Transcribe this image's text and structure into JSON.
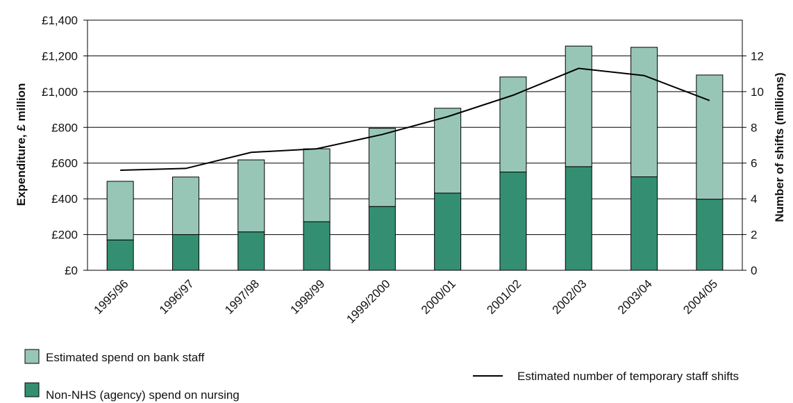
{
  "chart_data": {
    "type": "bar",
    "stacked": true,
    "categories": [
      "1995/96",
      "1996/97",
      "1997/98",
      "1998/99",
      "1999/2000",
      "2000/01",
      "2001/02",
      "2002/03",
      "2003/04",
      "2004/05"
    ],
    "series": [
      {
        "name": "Non-NHS (agency) spend on nursing",
        "kind": "bar",
        "axis": "left",
        "color": "#348f72",
        "values": [
          170,
          200,
          215,
          272,
          357,
          432,
          550,
          580,
          523,
          398
        ]
      },
      {
        "name": "Estimated spend on bank staff",
        "kind": "bar",
        "axis": "left",
        "color": "#97c6b7",
        "values": [
          328,
          322,
          403,
          408,
          438,
          475,
          532,
          675,
          725,
          695
        ]
      },
      {
        "name": "Estimated number of temporary staff shifts",
        "kind": "line",
        "axis": "right",
        "color": "#000000",
        "values": [
          5.6,
          5.7,
          6.6,
          6.8,
          7.6,
          8.6,
          9.8,
          11.3,
          10.9,
          9.5
        ]
      }
    ],
    "ylabel": "Expenditure, £ million",
    "y2label": "Number of shifts (millions)",
    "ylim": [
      0,
      1400
    ],
    "y2lim": [
      0,
      14
    ],
    "yticks": [
      "£0",
      "£200",
      "£400",
      "£600",
      "£800",
      "£1,000",
      "£1,200",
      "£1,400"
    ],
    "y2ticks": [
      "0",
      "2",
      "4",
      "6",
      "8",
      "10",
      "12"
    ],
    "grid": true,
    "legend": "bottom",
    "legend_bank": "Estimated spend on bank staff",
    "legend_agency": "Non-NHS (agency) spend on nursing",
    "legend_line": "Estimated number of temporary staff shifts"
  }
}
